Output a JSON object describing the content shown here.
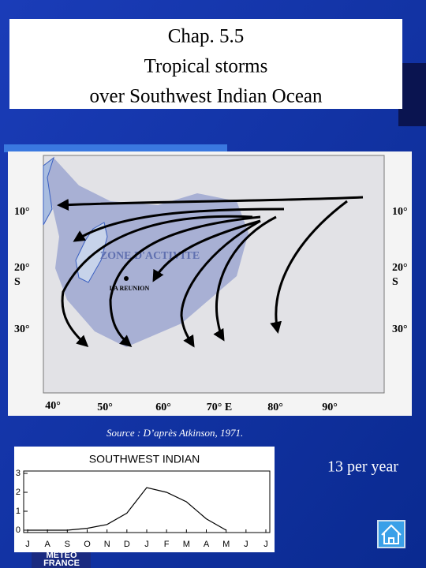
{
  "header": {
    "title_lines": [
      "Chap. 5.5",
      "Tropical storms",
      "over Southwest Indian Ocean"
    ]
  },
  "map": {
    "lat_labels": [
      "10°",
      "20°",
      "S",
      "30°"
    ],
    "lon_labels": [
      "40°",
      "50°",
      "60°",
      "70° E",
      "80°",
      "90°"
    ],
    "zone_label": "ZONE D'ACTIVITE",
    "island_label": "LA REUNION"
  },
  "source": "Source : D’après Atkinson, 1971.",
  "rate": "13 per year",
  "logo": [
    "METEO",
    "FRANCE"
  ],
  "chart_data": {
    "type": "line",
    "title": "SOUTHWEST INDIAN",
    "categories": [
      "J",
      "A",
      "S",
      "O",
      "N",
      "D",
      "J",
      "F",
      "M",
      "A",
      "M",
      "J",
      "J"
    ],
    "values": [
      0,
      0,
      0,
      0.1,
      0.3,
      0.9,
      2.25,
      2.0,
      1.5,
      0.6,
      0,
      null,
      null
    ],
    "color": "#000000",
    "ylim": [
      0,
      3
    ],
    "yticks": [
      0,
      1,
      2,
      3
    ]
  }
}
